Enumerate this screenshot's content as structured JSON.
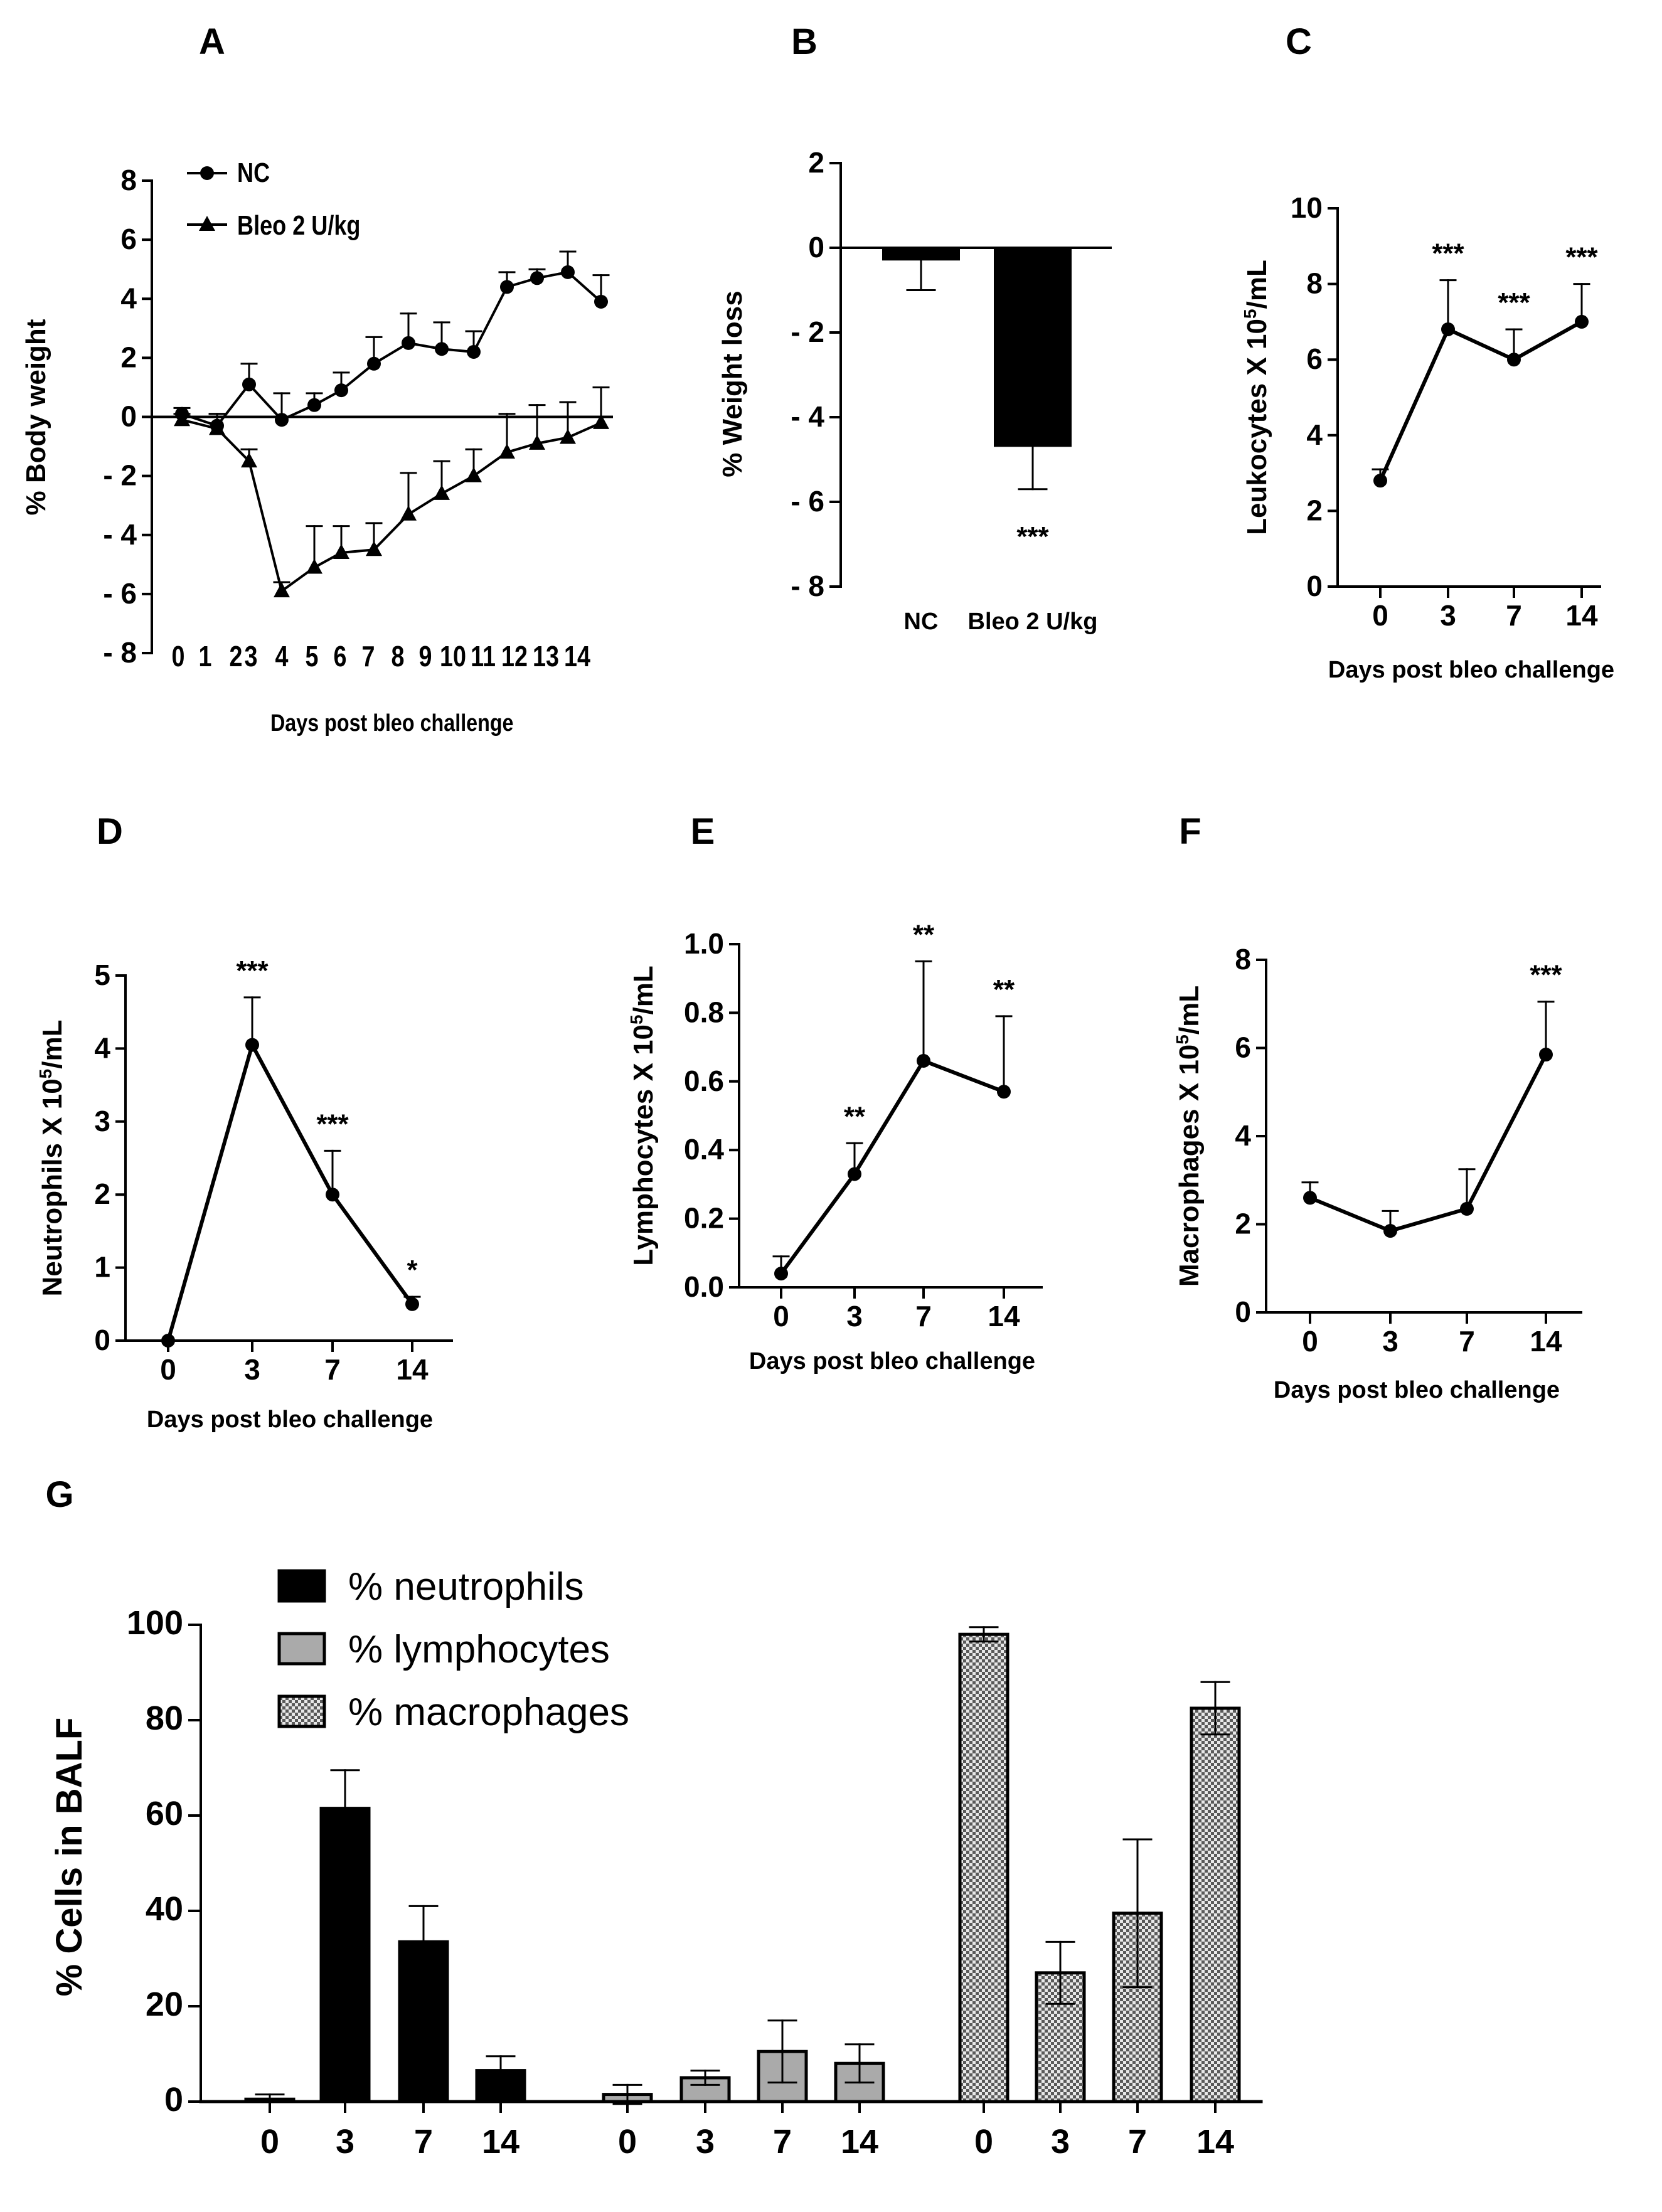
{
  "chart_data": [
    {
      "panel": "A",
      "type": "line",
      "title": "",
      "xlabel": "Days post bleo challenge",
      "ylabel": "% Body weight",
      "ylim": [
        -8,
        8
      ],
      "yticks": [
        "8",
        "6",
        "4",
        "2",
        "0",
        "- 2",
        "- 4",
        "- 6",
        "- 8"
      ],
      "x": [
        0,
        1,
        2,
        3,
        4,
        5,
        6,
        7,
        8,
        9,
        10,
        11,
        12,
        13,
        14
      ],
      "xtick_labels": [
        "0",
        "1",
        "2",
        "3",
        "4",
        "5",
        "6",
        "7",
        "8",
        "9",
        "10",
        "11",
        "12",
        "13",
        "14"
      ],
      "series": [
        {
          "name": "NC",
          "marker": "circle",
          "values": [
            0.1,
            -0.3,
            1.1,
            -0.1,
            0.4,
            0.9,
            1.8,
            2.5,
            2.3,
            2.2,
            4.4,
            4.7,
            4.9,
            3.9
          ],
          "x": [
            0,
            1,
            2,
            3,
            4,
            5,
            6,
            7,
            8,
            9,
            10,
            11,
            12,
            13
          ],
          "errors": [
            0.2,
            0.4,
            0.7,
            0.9,
            0.4,
            0.6,
            0.9,
            1.0,
            0.9,
            0.7,
            0.5,
            0.3,
            0.7,
            0.9
          ]
        },
        {
          "name": "Bleo 2 U/kg",
          "marker": "triangle",
          "values": [
            -0.1,
            -0.4,
            -1.5,
            -5.9,
            -5.1,
            -4.6,
            -4.5,
            -3.3,
            -2.6,
            -2.0,
            -1.2,
            -0.9,
            -0.7,
            -0.2
          ],
          "x": [
            0,
            1,
            2,
            3,
            4,
            5,
            6,
            7,
            8,
            9,
            10,
            11,
            12,
            13
          ],
          "errors": [
            0.2,
            0.5,
            0.4,
            0.3,
            1.4,
            0.9,
            0.9,
            1.4,
            1.1,
            0.9,
            1.3,
            1.3,
            1.2,
            1.2
          ]
        }
      ]
    },
    {
      "panel": "B",
      "type": "bar",
      "xlabel": "",
      "ylabel": "% Weight loss",
      "ylim": [
        -8,
        2
      ],
      "yticks": [
        "2",
        "0",
        "- 2",
        "- 4",
        "- 6",
        "- 8"
      ],
      "categories": [
        "NC",
        "Bleo 2 U/kg"
      ],
      "values": [
        -0.3,
        -4.7
      ],
      "errors": [
        0.7,
        1.0
      ],
      "annotations": [
        "",
        "***"
      ]
    },
    {
      "panel": "C",
      "type": "line",
      "xlabel": "Days post bleo challenge",
      "ylabel": "Leukocytes X 10",
      "ylabel_sup": "5",
      "ylabel_suffix": "/mL",
      "ylim": [
        0,
        10
      ],
      "yticks": [
        "0",
        "2",
        "4",
        "6",
        "8",
        "10"
      ],
      "categories": [
        "0",
        "3",
        "7",
        "14"
      ],
      "values": [
        2.8,
        6.8,
        6.0,
        7.0
      ],
      "errors": [
        0.3,
        1.3,
        0.8,
        1.0
      ],
      "annotations": [
        "",
        "***",
        "***",
        "***"
      ]
    },
    {
      "panel": "D",
      "type": "line",
      "xlabel": "Days post bleo challenge",
      "ylabel": "Neutrophils X 10",
      "ylabel_sup": "5",
      "ylabel_suffix": "/mL",
      "ylim": [
        0,
        5
      ],
      "yticks": [
        "0",
        "1",
        "2",
        "3",
        "4",
        "5"
      ],
      "categories": [
        "0",
        "3",
        "7",
        "14"
      ],
      "values": [
        0.0,
        4.05,
        2.0,
        0.5
      ],
      "errors": [
        0.0,
        0.65,
        0.6,
        0.1
      ],
      "annotations": [
        "",
        "***",
        "***",
        "*"
      ]
    },
    {
      "panel": "E",
      "type": "line",
      "xlabel": "Days post bleo challenge",
      "ylabel": "Lymphocytes X 10",
      "ylabel_sup": "5",
      "ylabel_suffix": "/mL",
      "ylim": [
        0,
        1.0
      ],
      "yticks": [
        "0.0",
        "0.2",
        "0.4",
        "0.6",
        "0.8",
        "1.0"
      ],
      "categories": [
        "0",
        "3",
        "7",
        "14"
      ],
      "values": [
        0.04,
        0.33,
        0.66,
        0.57
      ],
      "errors": [
        0.05,
        0.09,
        0.29,
        0.22
      ],
      "annotations": [
        "",
        "**",
        "**",
        "**"
      ]
    },
    {
      "panel": "F",
      "type": "line",
      "xlabel": "Days post bleo challenge",
      "ylabel": "Macrophages X 10",
      "ylabel_sup": "5",
      "ylabel_suffix": "/mL",
      "ylim": [
        0,
        8
      ],
      "yticks": [
        "0",
        "2",
        "4",
        "6",
        "8"
      ],
      "categories": [
        "0",
        "3",
        "7",
        "14"
      ],
      "values": [
        2.6,
        1.85,
        2.35,
        5.85
      ],
      "errors": [
        0.35,
        0.45,
        0.9,
        1.2
      ],
      "annotations": [
        "",
        "",
        "",
        "***"
      ]
    },
    {
      "panel": "G",
      "type": "bar",
      "xlabel": "",
      "ylabel": "% Cells in BALF",
      "ylim": [
        0,
        100
      ],
      "yticks": [
        "0",
        "20",
        "40",
        "60",
        "80",
        "100"
      ],
      "categories": [
        "0",
        "3",
        "7",
        "14"
      ],
      "series": [
        {
          "name": "% neutrophils",
          "color": "#000000",
          "pattern": "solid",
          "values": [
            0.5,
            61.5,
            33.5,
            6.5
          ],
          "errors": [
            1.0,
            8.0,
            7.5,
            3.0
          ]
        },
        {
          "name": "% lymphocytes",
          "color": "#aaaaaa",
          "pattern": "solid",
          "values": [
            1.5,
            5.0,
            10.5,
            8.0
          ],
          "errors": [
            2.0,
            1.5,
            6.5,
            4.0
          ]
        },
        {
          "name": "% macrophages",
          "color": "#bbbbbb",
          "pattern": "checker",
          "values": [
            98.0,
            27.0,
            39.5,
            82.5
          ],
          "errors": [
            1.5,
            6.5,
            15.5,
            5.5
          ]
        }
      ]
    }
  ]
}
